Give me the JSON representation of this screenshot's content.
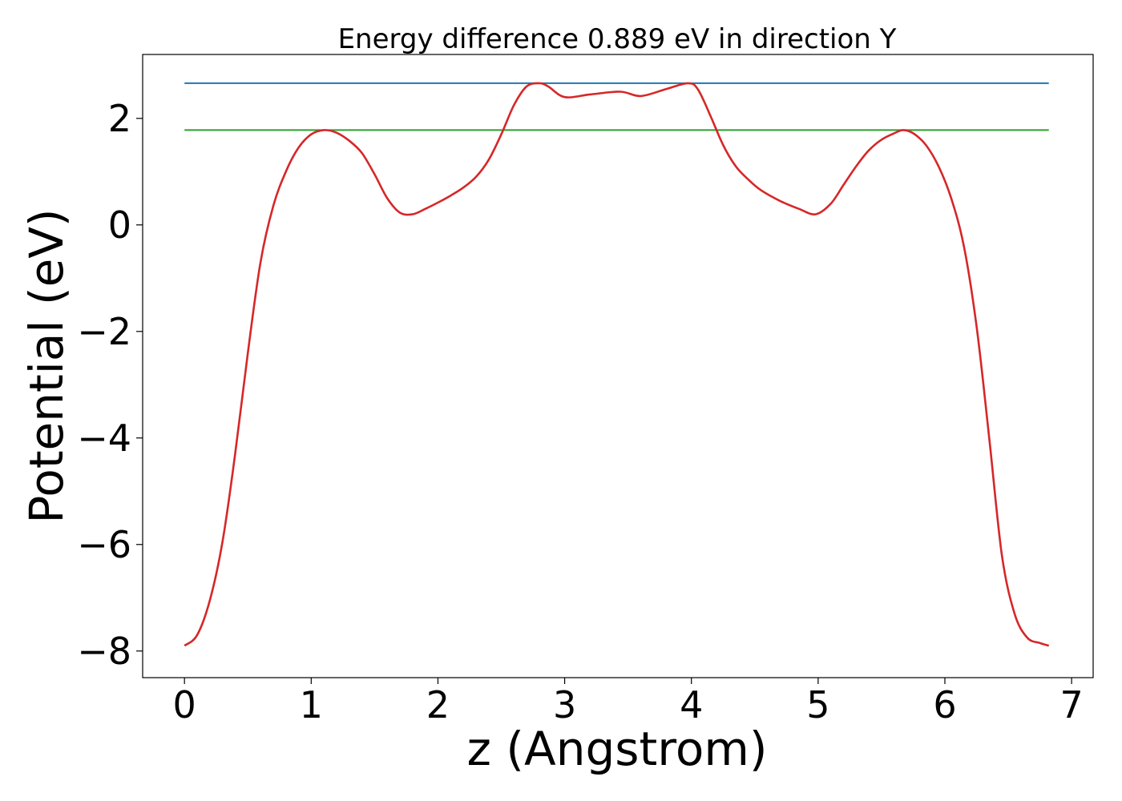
{
  "chart_data": {
    "type": "line",
    "title": "Energy difference 0.889 eV in direction Y",
    "xlabel": "z (Angstrom)",
    "ylabel": "Potential (eV)",
    "xlim": [
      -0.33,
      7.17
    ],
    "ylim": [
      -8.5,
      3.2
    ],
    "xticks": [
      0,
      1,
      2,
      3,
      4,
      5,
      6,
      7
    ],
    "xtick_labels": [
      "0",
      "1",
      "2",
      "3",
      "4",
      "5",
      "6",
      "7"
    ],
    "yticks": [
      -8,
      -6,
      -4,
      -2,
      0,
      2
    ],
    "ytick_labels": [
      "−8",
      "−6",
      "−4",
      "−2",
      "0",
      "2"
    ],
    "grid": false,
    "legend": false,
    "series": [
      {
        "color": "#1f77b4",
        "x": [
          0,
          6.82
        ],
        "y": [
          2.66,
          2.66
        ]
      },
      {
        "color": "#2ca02c",
        "x": [
          0,
          6.82
        ],
        "y": [
          1.78,
          1.78
        ]
      },
      {
        "color": "#d62728",
        "x": [
          0.0,
          0.1,
          0.2,
          0.3,
          0.4,
          0.5,
          0.6,
          0.7,
          0.8,
          0.9,
          1.0,
          1.1,
          1.2,
          1.3,
          1.4,
          1.5,
          1.6,
          1.7,
          1.8,
          1.9,
          2.0,
          2.1,
          2.2,
          2.3,
          2.4,
          2.5,
          2.6,
          2.7,
          2.8,
          2.87,
          3.0,
          3.2,
          3.44,
          3.6,
          3.8,
          3.97,
          4.05,
          4.15,
          4.25,
          4.35,
          4.45,
          4.55,
          4.7,
          4.85,
          4.98,
          5.1,
          5.2,
          5.3,
          5.4,
          5.5,
          5.6,
          5.67,
          5.75,
          5.85,
          5.95,
          6.05,
          6.15,
          6.25,
          6.35,
          6.45,
          6.55,
          6.65,
          6.75,
          6.82
        ],
        "y": [
          -7.9,
          -7.7,
          -7.05,
          -5.95,
          -4.3,
          -2.4,
          -0.7,
          0.35,
          1.0,
          1.45,
          1.7,
          1.78,
          1.73,
          1.58,
          1.35,
          0.95,
          0.5,
          0.23,
          0.2,
          0.3,
          0.42,
          0.55,
          0.7,
          0.9,
          1.22,
          1.7,
          2.25,
          2.6,
          2.66,
          2.6,
          2.4,
          2.45,
          2.5,
          2.42,
          2.55,
          2.66,
          2.55,
          2.05,
          1.5,
          1.1,
          0.85,
          0.65,
          0.45,
          0.3,
          0.2,
          0.4,
          0.75,
          1.1,
          1.4,
          1.6,
          1.72,
          1.78,
          1.72,
          1.5,
          1.1,
          0.5,
          -0.4,
          -1.9,
          -4.0,
          -6.2,
          -7.3,
          -7.75,
          -7.85,
          -7.9
        ]
      }
    ]
  }
}
